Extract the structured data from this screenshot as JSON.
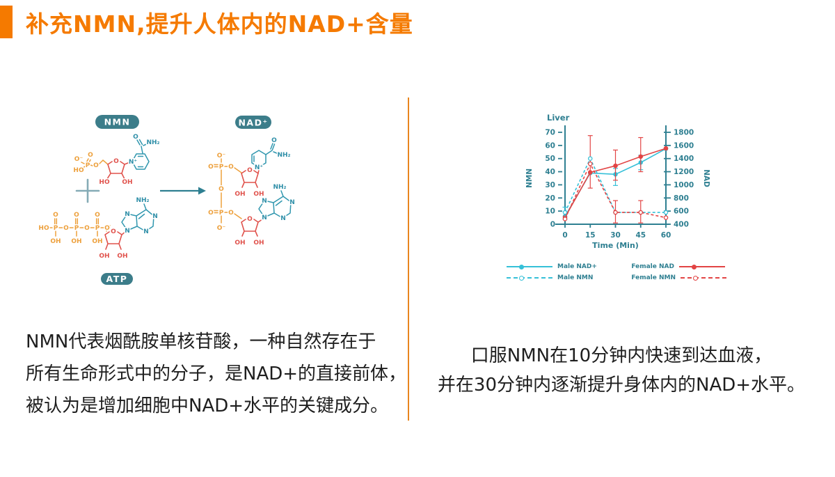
{
  "page": {
    "background": "#ffffff"
  },
  "header": {
    "title": "补充NMN,提升人体内的NAD+含量",
    "accent_color": "#f57a00"
  },
  "divider_color": "#e8851e",
  "diagram": {
    "badges": {
      "nmn": "NMN",
      "atp": "ATP",
      "nad": "NAD⁺"
    },
    "atoms": {
      "o": "O",
      "p": "P",
      "ho": "HO",
      "oh": "OH",
      "n": "N",
      "nplus": "N⁺",
      "nh2": "NH₂",
      "ominus": "O⁻"
    },
    "colors": {
      "phosphate": "#eda03c",
      "ribose": "#e0524c",
      "base": "#2f8fa8",
      "badge": "#3c7d8a"
    }
  },
  "left_text": {
    "lines": [
      "NMN代表烟酰胺单核苷酸，一种自然存在于",
      "所有生命形式中的分子，是NAD+的直接前体，",
      "被认为是增加细胞中NAD+水平的关键成分。"
    ]
  },
  "right_text": {
    "lines": [
      "口服NMN在10分钟内快速到达血液，",
      "并在30分钟内逐渐提升身体内的NAD+水平。"
    ]
  },
  "chart_data": {
    "type": "line",
    "title": "Liver",
    "xlabel": "Time (Min)",
    "ylabel_left": "NMN",
    "ylabel_right": "NAD",
    "axis_color": "#2e7f91",
    "x": [
      0,
      15,
      30,
      45,
      60
    ],
    "x_ticks": [
      0,
      15,
      30,
      45,
      60
    ],
    "left_axis": {
      "min": 0,
      "max": 70,
      "step": 10
    },
    "right_axis": {
      "min": 400,
      "max": 1800,
      "step": 200
    },
    "series": [
      {
        "name": "Male NAD+",
        "axis": "right",
        "color": "#35c0d8",
        "dashed": false,
        "marker": "filled",
        "values": [
          520,
          1180,
          1160,
          1340,
          1550
        ],
        "err_lo": [
          null,
          null,
          990,
          1230,
          null
        ],
        "err_hi": [
          null,
          null,
          1250,
          1450,
          null
        ]
      },
      {
        "name": "Female NAD",
        "axis": "right",
        "color": "#e24444",
        "dashed": false,
        "marker": "filled",
        "values": [
          505,
          1190,
          1290,
          1430,
          1555
        ],
        "err_lo": [
          null,
          950,
          1070,
          1200,
          null
        ],
        "err_hi": [
          null,
          1750,
          1530,
          1720,
          null
        ]
      },
      {
        "name": "Male NMN",
        "axis": "left",
        "color": "#35c0d8",
        "dashed": true,
        "marker": "open",
        "values": [
          9,
          50,
          9,
          9,
          9
        ],
        "err_lo": [
          4,
          null,
          null,
          null,
          null
        ],
        "err_hi": [
          13,
          null,
          null,
          null,
          null
        ]
      },
      {
        "name": "Female NMN",
        "axis": "left",
        "color": "#e24444",
        "dashed": true,
        "marker": "open",
        "values": [
          4,
          46,
          9,
          9,
          5
        ],
        "err_lo": [
          null,
          null,
          1,
          1,
          null
        ],
        "err_hi": [
          null,
          null,
          18,
          18,
          null
        ]
      }
    ],
    "legend": [
      {
        "label": "Male NAD+",
        "color": "#35c0d8",
        "dashed": false,
        "open": false,
        "side": "left"
      },
      {
        "label": "Male NMN",
        "color": "#35c0d8",
        "dashed": true,
        "open": true,
        "side": "left"
      },
      {
        "label": "Female NAD",
        "color": "#e24444",
        "dashed": false,
        "open": false,
        "side": "right"
      },
      {
        "label": "Female NMN",
        "color": "#e24444",
        "dashed": true,
        "open": true,
        "side": "right"
      }
    ]
  }
}
